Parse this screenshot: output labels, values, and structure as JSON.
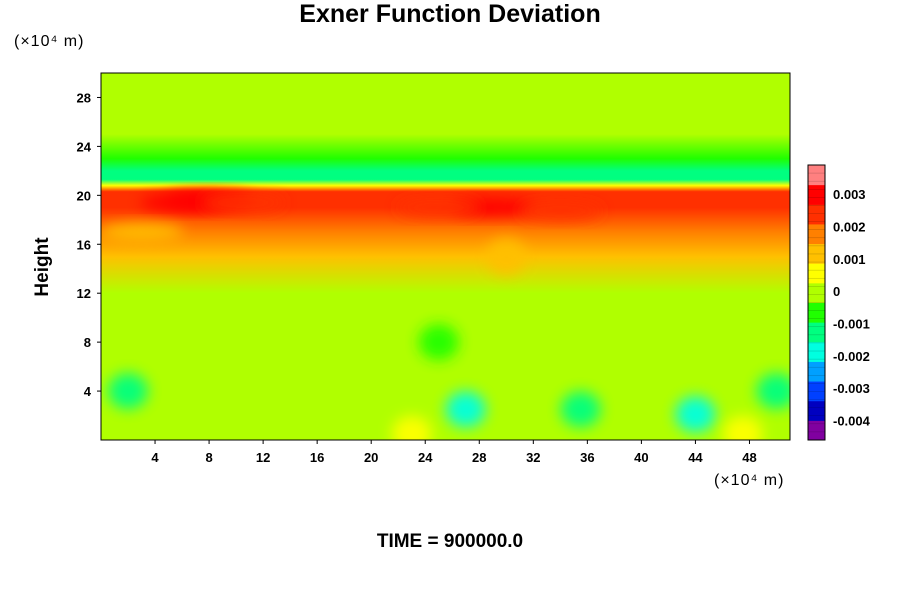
{
  "chart_data": {
    "type": "heatmap",
    "title": "Exner Function Deviation",
    "ylabel": "Height",
    "xlabel": "",
    "x_unit": "(×10⁴ m)",
    "y_unit": "(×10⁴ m)",
    "footer": "TIME = 900000.0",
    "xlim": [
      0,
      51
    ],
    "ylim": [
      0,
      30
    ],
    "x_ticks": [
      4,
      8,
      12,
      16,
      20,
      24,
      28,
      32,
      36,
      40,
      44,
      48
    ],
    "y_ticks": [
      4,
      8,
      12,
      16,
      20,
      24,
      28
    ],
    "colorbar": {
      "range": [
        -0.0046,
        0.0039
      ],
      "ticks": [
        0.003,
        0.002,
        0.001,
        0,
        -0.001,
        -0.002,
        -0.003,
        -0.004
      ],
      "tick_labels": [
        "0.003",
        "0.002",
        "0.001",
        "0",
        "-0.001",
        "-0.002",
        "-0.003",
        "-0.004"
      ],
      "colors": [
        "#8000a0",
        "#0000c0",
        "#0040ff",
        "#00a0ff",
        "#00ffe0",
        "#00ff80",
        "#20ff00",
        "#b0ff00",
        "#ffff00",
        "#ffc000",
        "#ff8000",
        "#ff3000",
        "#ff0000",
        "#ff8080"
      ]
    },
    "vertical_profile": [
      {
        "height": 0,
        "value": -0.0003
      },
      {
        "height": 2,
        "value": -0.0003
      },
      {
        "height": 4,
        "value": -0.0002
      },
      {
        "height": 8,
        "value": -0.00015
      },
      {
        "height": 12,
        "value": 0.0002
      },
      {
        "height": 15,
        "value": 0.0009
      },
      {
        "height": 17,
        "value": 0.0016
      },
      {
        "height": 19,
        "value": 0.0023
      },
      {
        "height": 20.3,
        "value": 0.0022
      },
      {
        "height": 20.8,
        "value": 0.0008
      },
      {
        "height": 21.3,
        "value": -0.0015
      },
      {
        "height": 22,
        "value": -0.0012
      },
      {
        "height": 23,
        "value": -0.0007
      },
      {
        "height": 25,
        "value": -0.0003
      },
      {
        "height": 30,
        "value": -0.0002
      }
    ],
    "features": [
      {
        "x": 8,
        "y": 19.6,
        "value": 0.0031
      },
      {
        "x": 6,
        "y": 19.4,
        "value": 0.0027
      },
      {
        "x": 10.5,
        "y": 19.4,
        "value": 0.0025
      },
      {
        "x": 29,
        "y": 19,
        "value": 0.0027
      },
      {
        "x": 34,
        "y": 18.7,
        "value": 0.0025
      },
      {
        "x": 25,
        "y": 19,
        "value": 0.0024
      },
      {
        "x": 27,
        "y": 2.5,
        "value": -0.0019
      },
      {
        "x": 35.5,
        "y": 2.5,
        "value": -0.0014
      },
      {
        "x": 44,
        "y": 2.1,
        "value": -0.0017
      },
      {
        "x": 2,
        "y": 4,
        "value": -0.0012
      },
      {
        "x": 50,
        "y": 4,
        "value": -0.0011
      },
      {
        "x": 25,
        "y": 8,
        "value": -0.0008
      },
      {
        "x": 23,
        "y": 0.5,
        "value": 0.0007
      },
      {
        "x": 47.5,
        "y": 0.5,
        "value": 0.0006
      },
      {
        "x": 3,
        "y": 17,
        "value": 0.0013
      },
      {
        "x": 30,
        "y": 15,
        "value": 0.0012
      }
    ]
  }
}
